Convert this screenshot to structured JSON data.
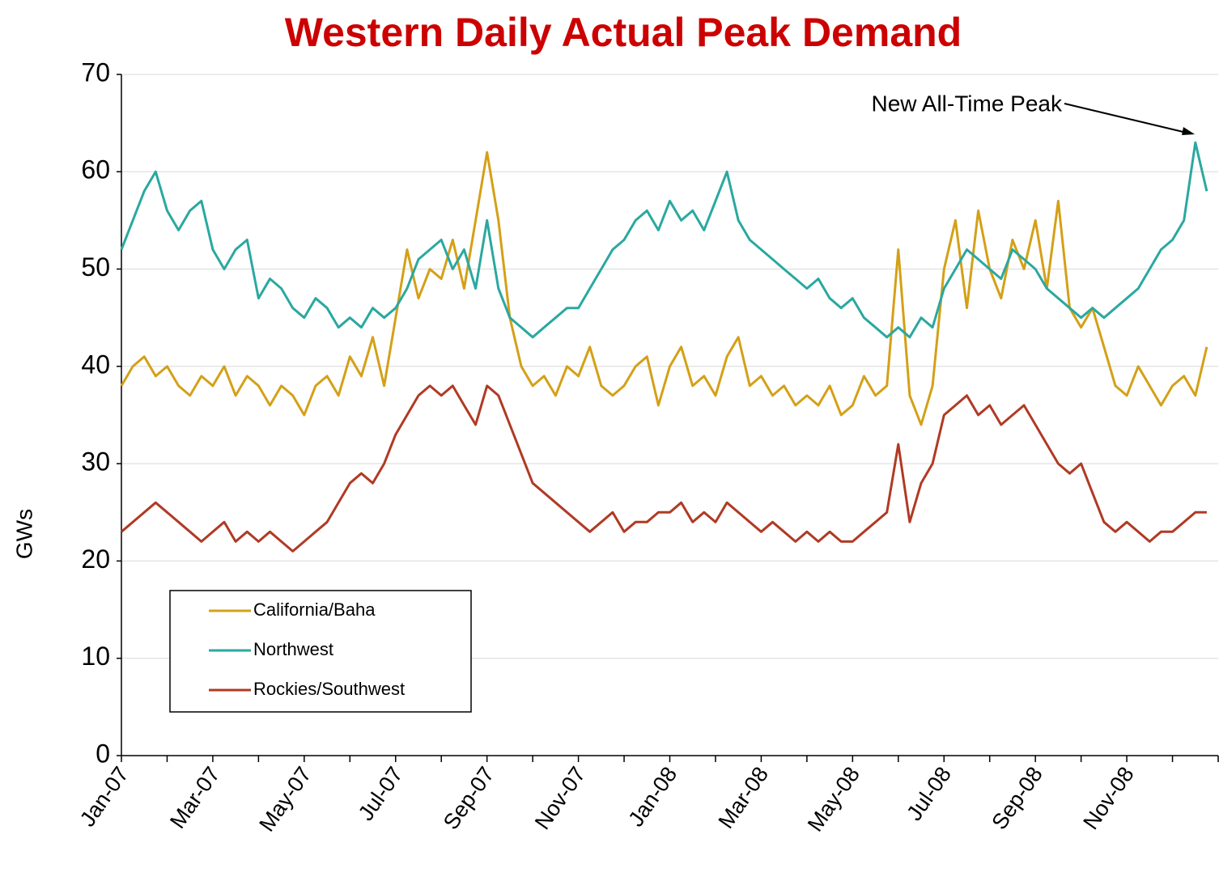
{
  "chart_data": {
    "type": "line",
    "title": "Western Daily Actual Peak Demand",
    "y_label": "GWs",
    "annotation": "New All-Time Peak",
    "categories": [
      "Jan-07",
      null,
      null,
      null,
      null,
      null,
      null,
      null,
      "Mar-07",
      null,
      null,
      null,
      null,
      null,
      null,
      null,
      "May-07",
      null,
      null,
      null,
      null,
      null,
      null,
      null,
      "Jul-07",
      null,
      null,
      null,
      null,
      null,
      null,
      null,
      "Sep-07",
      null,
      null,
      null,
      null,
      null,
      null,
      null,
      "Nov-07",
      null,
      null,
      null,
      null,
      null,
      null,
      null,
      "Jan-08",
      null,
      null,
      null,
      null,
      null,
      null,
      null,
      "Mar-08",
      null,
      null,
      null,
      null,
      null,
      null,
      null,
      "May-08",
      null,
      null,
      null,
      null,
      null,
      null,
      null,
      "Jul-08",
      null,
      null,
      null,
      null,
      null,
      null,
      null,
      "Sep-08",
      null,
      null,
      null,
      null,
      null,
      null,
      null,
      "Nov-08",
      null,
      null,
      null,
      null,
      null,
      null,
      null
    ],
    "series": [
      {
        "name": "California/Baha",
        "color": "#d4a017",
        "values": [
          38,
          40,
          41,
          39,
          40,
          38,
          37,
          39,
          38,
          40,
          37,
          39,
          38,
          36,
          38,
          37,
          35,
          38,
          39,
          37,
          41,
          39,
          43,
          38,
          45,
          52,
          47,
          50,
          49,
          53,
          48,
          55,
          62,
          55,
          45,
          40,
          38,
          39,
          37,
          40,
          39,
          42,
          38,
          37,
          38,
          40,
          41,
          36,
          40,
          42,
          38,
          39,
          37,
          41,
          43,
          38,
          39,
          37,
          38,
          36,
          37,
          36,
          38,
          35,
          36,
          39,
          37,
          38,
          52,
          37,
          34,
          38,
          50,
          55,
          46,
          56,
          50,
          47,
          53,
          50,
          55,
          48,
          57,
          46,
          44,
          46,
          42,
          38,
          37,
          40,
          38,
          36,
          38,
          39,
          37,
          42
        ]
      },
      {
        "name": "Northwest",
        "color": "#2aa8a0",
        "values": [
          52,
          55,
          58,
          60,
          56,
          54,
          56,
          57,
          52,
          50,
          52,
          53,
          47,
          49,
          48,
          46,
          45,
          47,
          46,
          44,
          45,
          44,
          46,
          45,
          46,
          48,
          51,
          52,
          53,
          50,
          52,
          48,
          55,
          48,
          45,
          44,
          43,
          44,
          45,
          46,
          46,
          48,
          50,
          52,
          53,
          55,
          56,
          54,
          57,
          55,
          56,
          54,
          57,
          60,
          55,
          53,
          52,
          51,
          50,
          49,
          48,
          49,
          47,
          46,
          47,
          45,
          44,
          43,
          44,
          43,
          45,
          44,
          48,
          50,
          52,
          51,
          50,
          49,
          52,
          51,
          50,
          48,
          47,
          46,
          45,
          46,
          45,
          46,
          47,
          48,
          50,
          52,
          53,
          55,
          63,
          58
        ]
      },
      {
        "name": "Rockies/Southwest",
        "color": "#b03a24",
        "values": [
          23,
          24,
          25,
          26,
          25,
          24,
          23,
          22,
          23,
          24,
          22,
          23,
          22,
          23,
          22,
          21,
          22,
          23,
          24,
          26,
          28,
          29,
          28,
          30,
          33,
          35,
          37,
          38,
          37,
          38,
          36,
          34,
          38,
          37,
          34,
          31,
          28,
          27,
          26,
          25,
          24,
          23,
          24,
          25,
          23,
          24,
          24,
          25,
          25,
          26,
          24,
          25,
          24,
          26,
          25,
          24,
          23,
          24,
          23,
          22,
          23,
          22,
          23,
          22,
          22,
          23,
          24,
          25,
          32,
          24,
          28,
          30,
          35,
          36,
          37,
          35,
          36,
          34,
          35,
          36,
          34,
          32,
          30,
          29,
          30,
          27,
          24,
          23,
          24,
          23,
          22,
          23,
          23,
          24,
          25,
          25
        ]
      }
    ],
    "ylim": [
      0,
      70
    ],
    "yticks": [
      0,
      10,
      20,
      30,
      40,
      50,
      60,
      70
    ],
    "grid": true,
    "legend": "lower left"
  }
}
